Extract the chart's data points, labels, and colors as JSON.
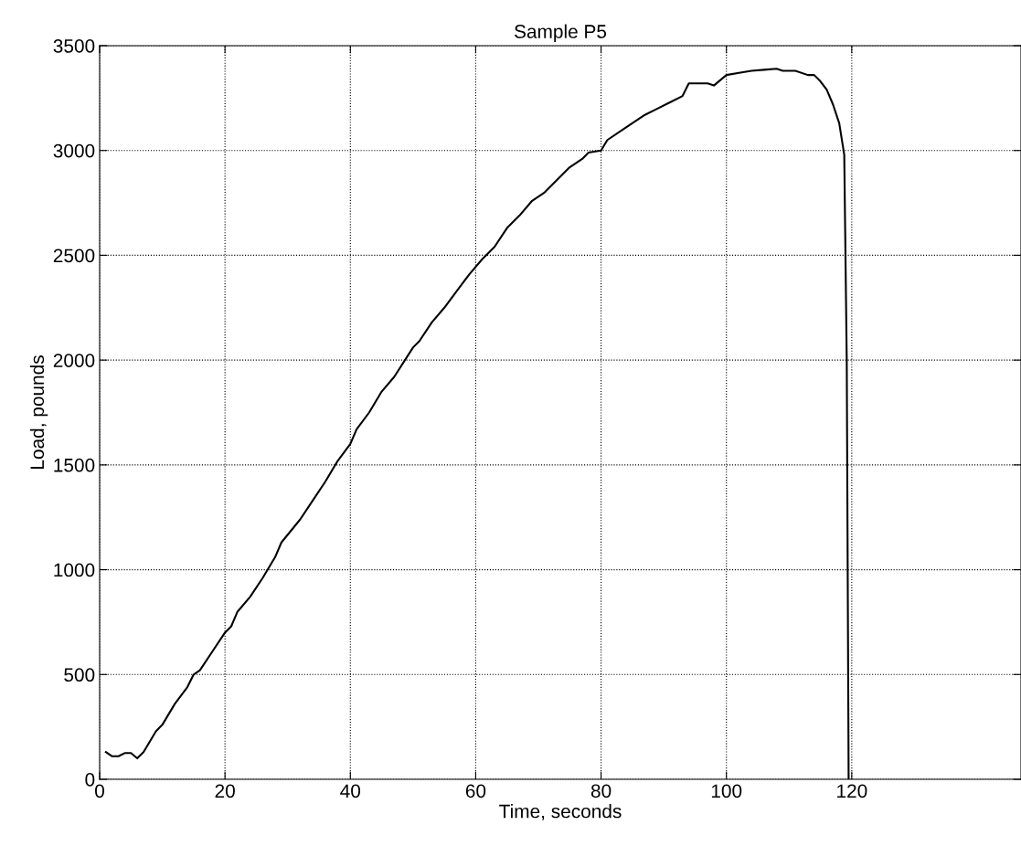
{
  "chart_data": {
    "type": "line",
    "title": "Sample P5",
    "xlabel": "Time, seconds",
    "ylabel": "Load, pounds",
    "x": [
      1,
      2,
      3,
      4,
      5,
      6,
      7,
      8,
      9,
      10,
      12,
      14,
      15,
      16,
      18,
      20,
      21,
      22,
      24,
      26,
      28,
      29,
      32,
      34,
      36,
      38,
      40,
      41,
      43,
      45,
      47,
      50,
      51,
      53,
      55,
      57,
      59,
      61,
      63,
      65,
      67,
      69,
      71,
      73,
      75,
      77,
      78,
      80,
      81,
      84,
      87,
      89,
      91,
      93,
      94,
      97,
      98,
      100,
      102,
      104,
      106,
      108,
      109,
      111,
      113,
      114,
      115,
      116,
      117,
      118,
      118.8,
      119.2,
      119.5
    ],
    "series": [
      {
        "color": "#000000",
        "values": [
          130,
          110,
          110,
          125,
          125,
          100,
          130,
          180,
          230,
          260,
          360,
          440,
          500,
          520,
          610,
          700,
          730,
          800,
          870,
          960,
          1060,
          1130,
          1240,
          1330,
          1420,
          1520,
          1600,
          1670,
          1750,
          1850,
          1920,
          2060,
          2090,
          2180,
          2250,
          2330,
          2410,
          2480,
          2540,
          2630,
          2690,
          2760,
          2800,
          2860,
          2920,
          2960,
          2990,
          3000,
          3050,
          3110,
          3170,
          3200,
          3230,
          3260,
          3320,
          3320,
          3310,
          3360,
          3370,
          3380,
          3385,
          3390,
          3380,
          3380,
          3360,
          3360,
          3330,
          3290,
          3220,
          3130,
          2980,
          2000,
          0
        ]
      }
    ],
    "xlim": [
      0,
      147
    ],
    "ylim": [
      0,
      3500
    ],
    "xticks": [
      0,
      20,
      40,
      60,
      80,
      100,
      120
    ],
    "yticks": [
      0,
      500,
      1000,
      1500,
      2000,
      2500,
      3000,
      3500
    ],
    "grid": true,
    "line_style": "solid",
    "marker": "none"
  }
}
